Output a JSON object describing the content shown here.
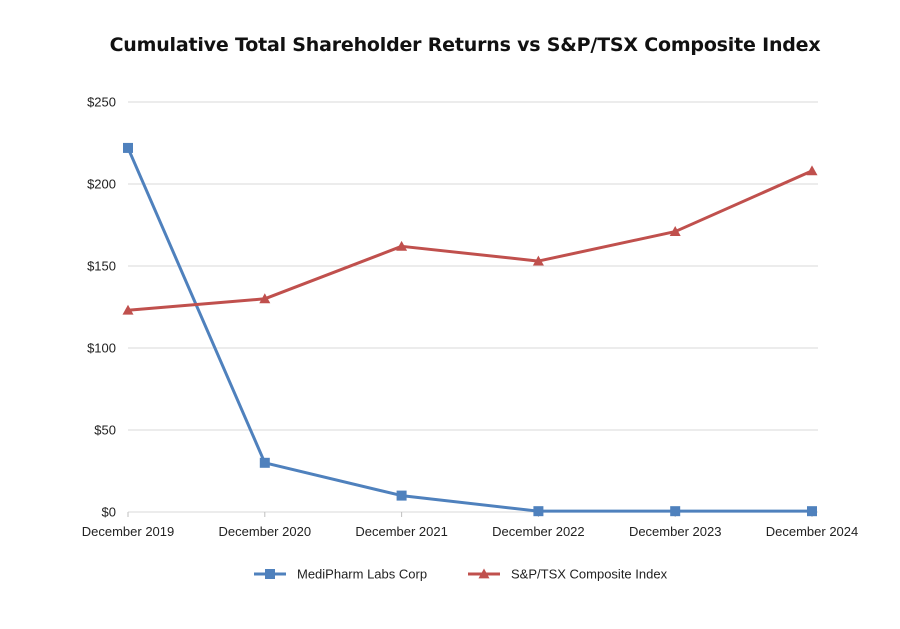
{
  "chart_data": {
    "type": "line",
    "title": "Cumulative Total Shareholder Returns vs S&P/TSX Composite Index",
    "categories": [
      "December 2019",
      "December 2020",
      "December 2021",
      "December 2022",
      "December 2023",
      "December 2024"
    ],
    "series": [
      {
        "name": "MediPharm Labs Corp",
        "color": "#4f81bd",
        "marker": "square",
        "values": [
          222,
          30,
          10,
          0.5,
          0.5,
          0.5
        ]
      },
      {
        "name": "S&P/TSX Composite Index",
        "color": "#c0504d",
        "marker": "triangle",
        "values": [
          123,
          130,
          162,
          153,
          171,
          208
        ]
      }
    ],
    "yticks": [
      "$0",
      "$50",
      "$100",
      "$150",
      "$200",
      "$250"
    ],
    "ylim": [
      0,
      250
    ],
    "grid": true,
    "legend_position": "bottom"
  }
}
